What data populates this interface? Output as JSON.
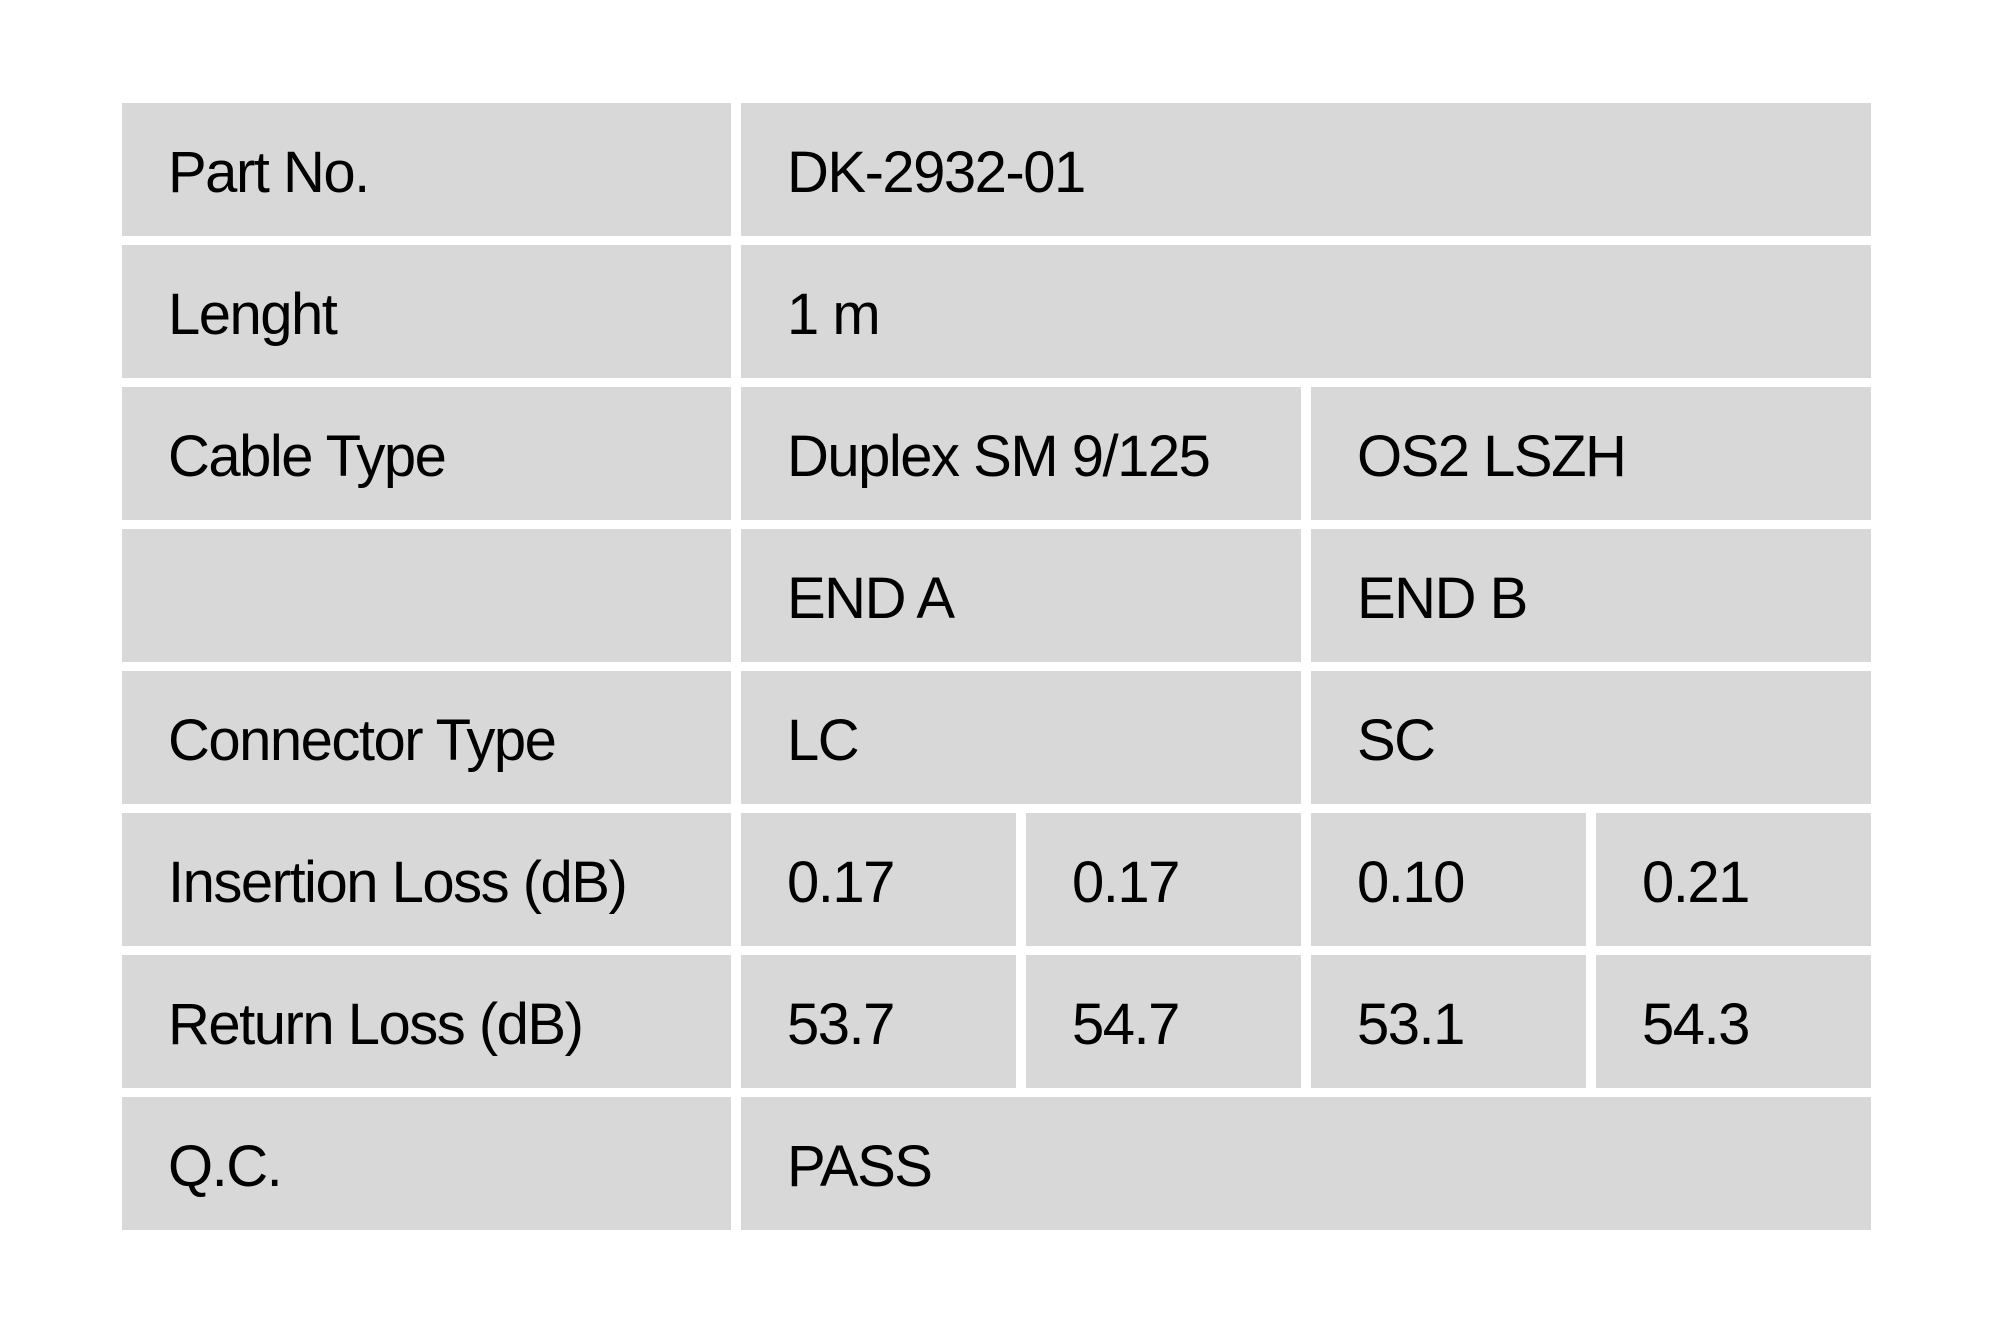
{
  "page": {
    "background": "#ffffff"
  },
  "table": {
    "cell_bg": "#d8d8d8",
    "text_color": "#000000",
    "rows": [
      {
        "label": "Part No.",
        "values": [
          "DK-2932-01"
        ]
      },
      {
        "label": "Lenght",
        "values": [
          "1 m"
        ]
      },
      {
        "label": "Cable Type",
        "values": [
          "Duplex SM 9/125",
          "OS2 LSZH"
        ]
      },
      {
        "label": "",
        "values": [
          "END A",
          "END B"
        ]
      },
      {
        "label": "Connector Type",
        "values": [
          "LC",
          "SC"
        ]
      },
      {
        "label": "Insertion Loss (dB)",
        "values": [
          "0.17",
          "0.17",
          "0.10",
          "0.21"
        ]
      },
      {
        "label": "Return Loss (dB)",
        "values": [
          "53.7",
          "54.7",
          "53.1",
          "54.3"
        ]
      },
      {
        "label": "Q.C.",
        "values": [
          "PASS"
        ]
      }
    ]
  }
}
